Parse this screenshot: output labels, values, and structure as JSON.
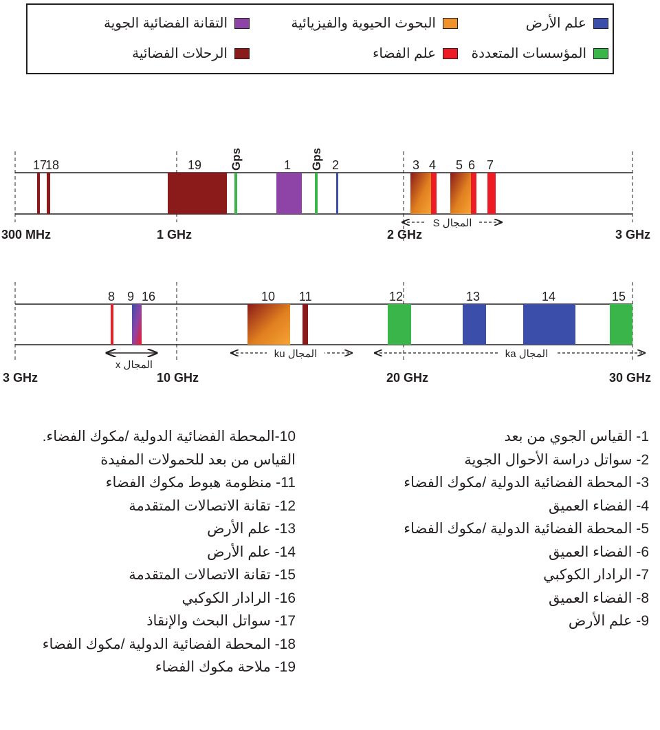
{
  "legend": [
    {
      "key": "earth",
      "label": "علم الأرض",
      "color": "#3b4eaa"
    },
    {
      "key": "bio",
      "label": "البحوث الحيوية والفيزيائية",
      "color": "#f0922a"
    },
    {
      "key": "aerotech",
      "label": "التقانة الفضائية الجوية",
      "color": "#8e44a6"
    },
    {
      "key": "multi",
      "label": "المؤسسات المتعددة",
      "color": "#39b54a"
    },
    {
      "key": "space",
      "label": "علم الفضاء",
      "color": "#ed1c24"
    },
    {
      "key": "flights",
      "label": "الرحلات الفضائية",
      "color": "#8b1a1a"
    }
  ],
  "bands": [
    {
      "axis_labels": [
        "300 MHz",
        "1 GHz",
        "2 GHz",
        "3 GHz"
      ],
      "items": [
        {
          "label": "17",
          "color": "#8b1a1a"
        },
        {
          "label": "18",
          "color": "#8b1a1a"
        },
        {
          "label": "19",
          "color": "#8b1a1a"
        },
        {
          "label": "Gps",
          "color": "#39b54a"
        },
        {
          "label": "1",
          "color": "#8e44a6"
        },
        {
          "label": "Gps",
          "color": "#39b54a"
        },
        {
          "label": "2",
          "color": "#3b4eaa"
        },
        {
          "label": "3",
          "color": "gradient"
        },
        {
          "label": "4",
          "color": "#ed1c24"
        },
        {
          "label": "5",
          "color": "gradient"
        },
        {
          "label": "6",
          "color": "#ed1c24"
        },
        {
          "label": "7",
          "color": "#ed1c24"
        }
      ],
      "ranges": [
        {
          "label": "المجال S"
        }
      ]
    },
    {
      "axis_labels": [
        "3 GHz",
        "10 GHz",
        "20 GHz",
        "30 GHz"
      ],
      "items": [
        {
          "label": "8",
          "color": "#ed1c24"
        },
        {
          "label": "9",
          "color": "blue-red"
        },
        {
          "label": "16",
          "color": "blue-red"
        },
        {
          "label": "10",
          "color": "gradient"
        },
        {
          "label": "11",
          "color": "#8b1a1a"
        },
        {
          "label": "12",
          "color": "#39b54a"
        },
        {
          "label": "13",
          "color": "#3b4eaa"
        },
        {
          "label": "14",
          "color": "#3b4eaa"
        },
        {
          "label": "15",
          "color": "#39b54a"
        }
      ],
      "ranges": [
        {
          "label": "المجال x"
        },
        {
          "label": "المجال ku"
        },
        {
          "label": "المجال ka"
        }
      ]
    }
  ],
  "list_right": [
    "1- القياس الجوي من بعد",
    "2- سواتل دراسة الأحوال الجوية",
    "3- المحطة الفضائية الدولية /مكوك الفضاء",
    "4- الفضاء العميق",
    "5- المحطة الفضائية الدولية /مكوك الفضاء",
    "6- الفضاء العميق",
    "7- الرادار الكوكبي",
    "8- الفضاء العميق",
    "9- علم الأرض"
  ],
  "list_left": [
    "10-المحطة الفضائية الدولية /مكوك الفضاء.",
    "القياس من بعد للحمولات المفيدة",
    "11- منظومة هبوط مكوك الفضاء",
    "12- تقانة الاتصالات المتقدمة",
    "13- علم الأرض",
    "14- علم الأرض",
    "15- تقانة الاتصالات المتقدمة",
    "16- الرادار الكوكبي",
    "17- سواتل البحث والإنقاذ",
    "18- المحطة الفضائية الدولية /مكوك الفضاء",
    "19- ملاحة مكوك الفضاء"
  ]
}
